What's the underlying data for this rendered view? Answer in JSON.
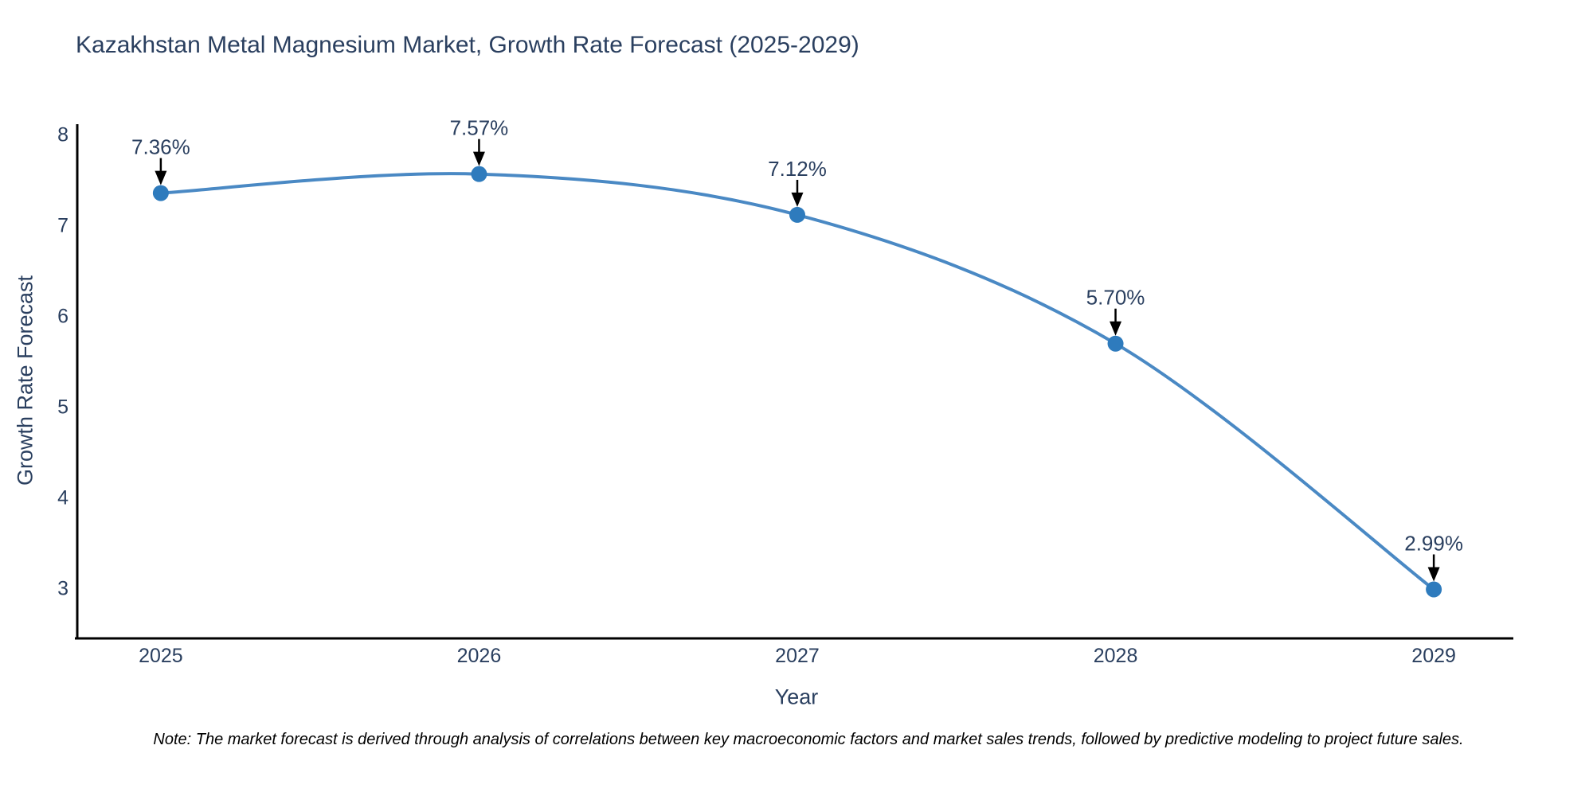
{
  "note": "Note: The market forecast is derived through analysis of correlations between key macroeconomic factors and market sales trends, followed by predictive modeling to project future sales.",
  "chart_data": {
    "type": "line",
    "title": "Kazakhstan Metal Magnesium Market, Growth Rate Forecast (2025-2029)",
    "xlabel": "Year",
    "ylabel": "Growth Rate Forecast",
    "x": [
      2025,
      2026,
      2027,
      2028,
      2029
    ],
    "y": [
      7.36,
      7.57,
      7.12,
      5.7,
      2.99
    ],
    "point_labels": [
      "7.36%",
      "7.57%",
      "7.12%",
      "5.70%",
      "2.99%"
    ],
    "xticks": [
      "2025",
      "2026",
      "2027",
      "2028",
      "2029"
    ],
    "yticks": [
      8,
      7,
      6,
      5,
      4,
      3
    ],
    "xlim": [
      2024.7375,
      2029.25
    ],
    "ylim": [
      2.45,
      8.12
    ],
    "line_shape": "spline",
    "grid": false,
    "legend": false,
    "colors": {
      "line": "#4a89c4",
      "marker": "#2e7bbd",
      "axis_line": "#000000",
      "text": "#2a3f5f",
      "arrow": "#000000",
      "background": "#ffffff"
    }
  }
}
